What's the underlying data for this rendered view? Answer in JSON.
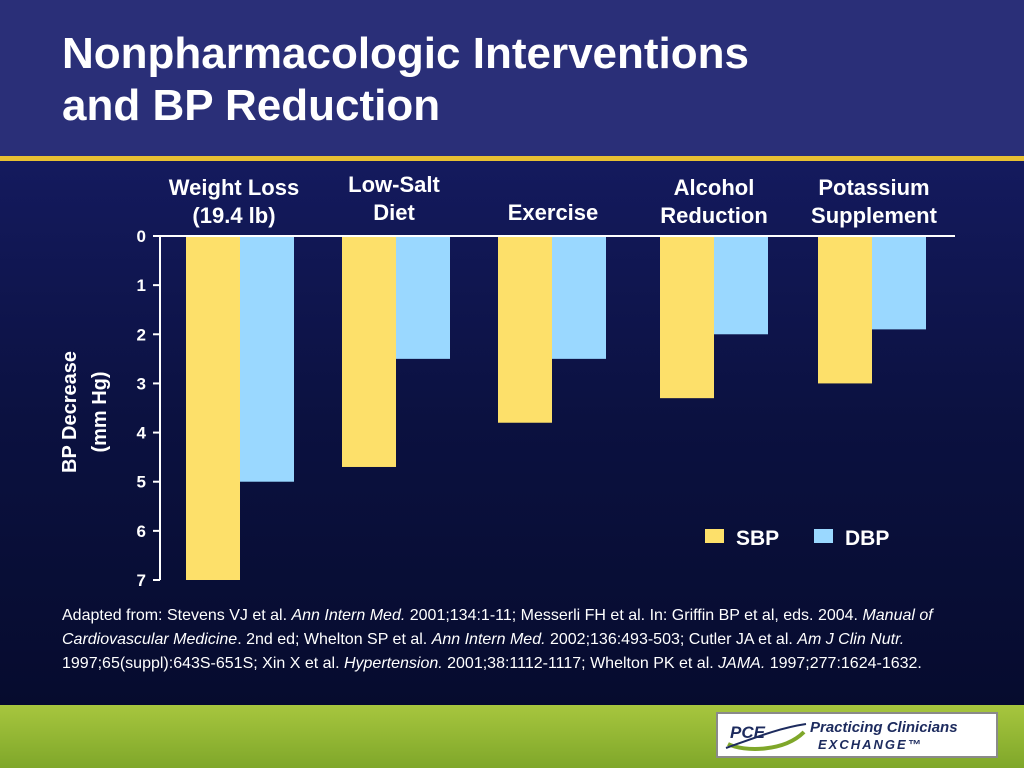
{
  "slide": {
    "title_line1": "Nonpharmacologic Interventions",
    "title_line2": "and BP Reduction"
  },
  "colors": {
    "sbp": "#fde06a",
    "dbp": "#9ad8ff",
    "accent_rule": "#e8c032",
    "footer": "#8db534"
  },
  "chart_data": {
    "type": "bar",
    "categories": [
      [
        "Weight Loss",
        "(19.4 lb)"
      ],
      [
        "Low-Salt",
        "Diet"
      ],
      [
        "Exercise"
      ],
      [
        "Alcohol",
        "Reduction"
      ],
      [
        "Potassium",
        "Supplement"
      ]
    ],
    "series": [
      {
        "name": "SBP",
        "values": [
          7.0,
          4.7,
          3.8,
          3.3,
          3.0
        ]
      },
      {
        "name": "DBP",
        "values": [
          5.0,
          2.5,
          2.5,
          2.0,
          1.9
        ]
      }
    ],
    "ylabel_line1": "BP Decrease",
    "ylabel_line2": "(mm Hg)",
    "ylim": [
      0,
      7
    ],
    "y_ticks": [
      "0",
      "1",
      "2",
      "3",
      "4",
      "5",
      "6",
      "7"
    ],
    "y_inverted": true,
    "legend_position": "bottom-right"
  },
  "citation": [
    {
      "text": "Adapted from: Stevens VJ et al. ",
      "italic": false
    },
    {
      "text": "Ann Intern Med.",
      "italic": true
    },
    {
      "text": " 2001;134:1-11; Messerli FH et al. In: Griffin BP et al, eds. 2004. ",
      "italic": false
    },
    {
      "text": "Manual of Cardiovascular Medicine",
      "italic": true
    },
    {
      "text": ". 2nd ed; Whelton SP et al. ",
      "italic": false
    },
    {
      "text": "Ann Intern Med.",
      "italic": true
    },
    {
      "text": " 2002;136:493-503; Cutler JA et al. ",
      "italic": false
    },
    {
      "text": "Am J Clin Nutr.",
      "italic": true
    },
    {
      "text": " 1997;65(suppl):643S-651S; Xin X et al. ",
      "italic": false
    },
    {
      "text": "Hypertension.",
      "italic": true
    },
    {
      "text": " 2001;38:1112-1117; Whelton PK et al. ",
      "italic": false
    },
    {
      "text": "JAMA.",
      "italic": true
    },
    {
      "text": " 1997;277:1624-1632.",
      "italic": false
    }
  ],
  "logo": {
    "mark_text": "PCE",
    "line1": "Practicing Clinicians",
    "line2": "EXCHANGE™"
  }
}
